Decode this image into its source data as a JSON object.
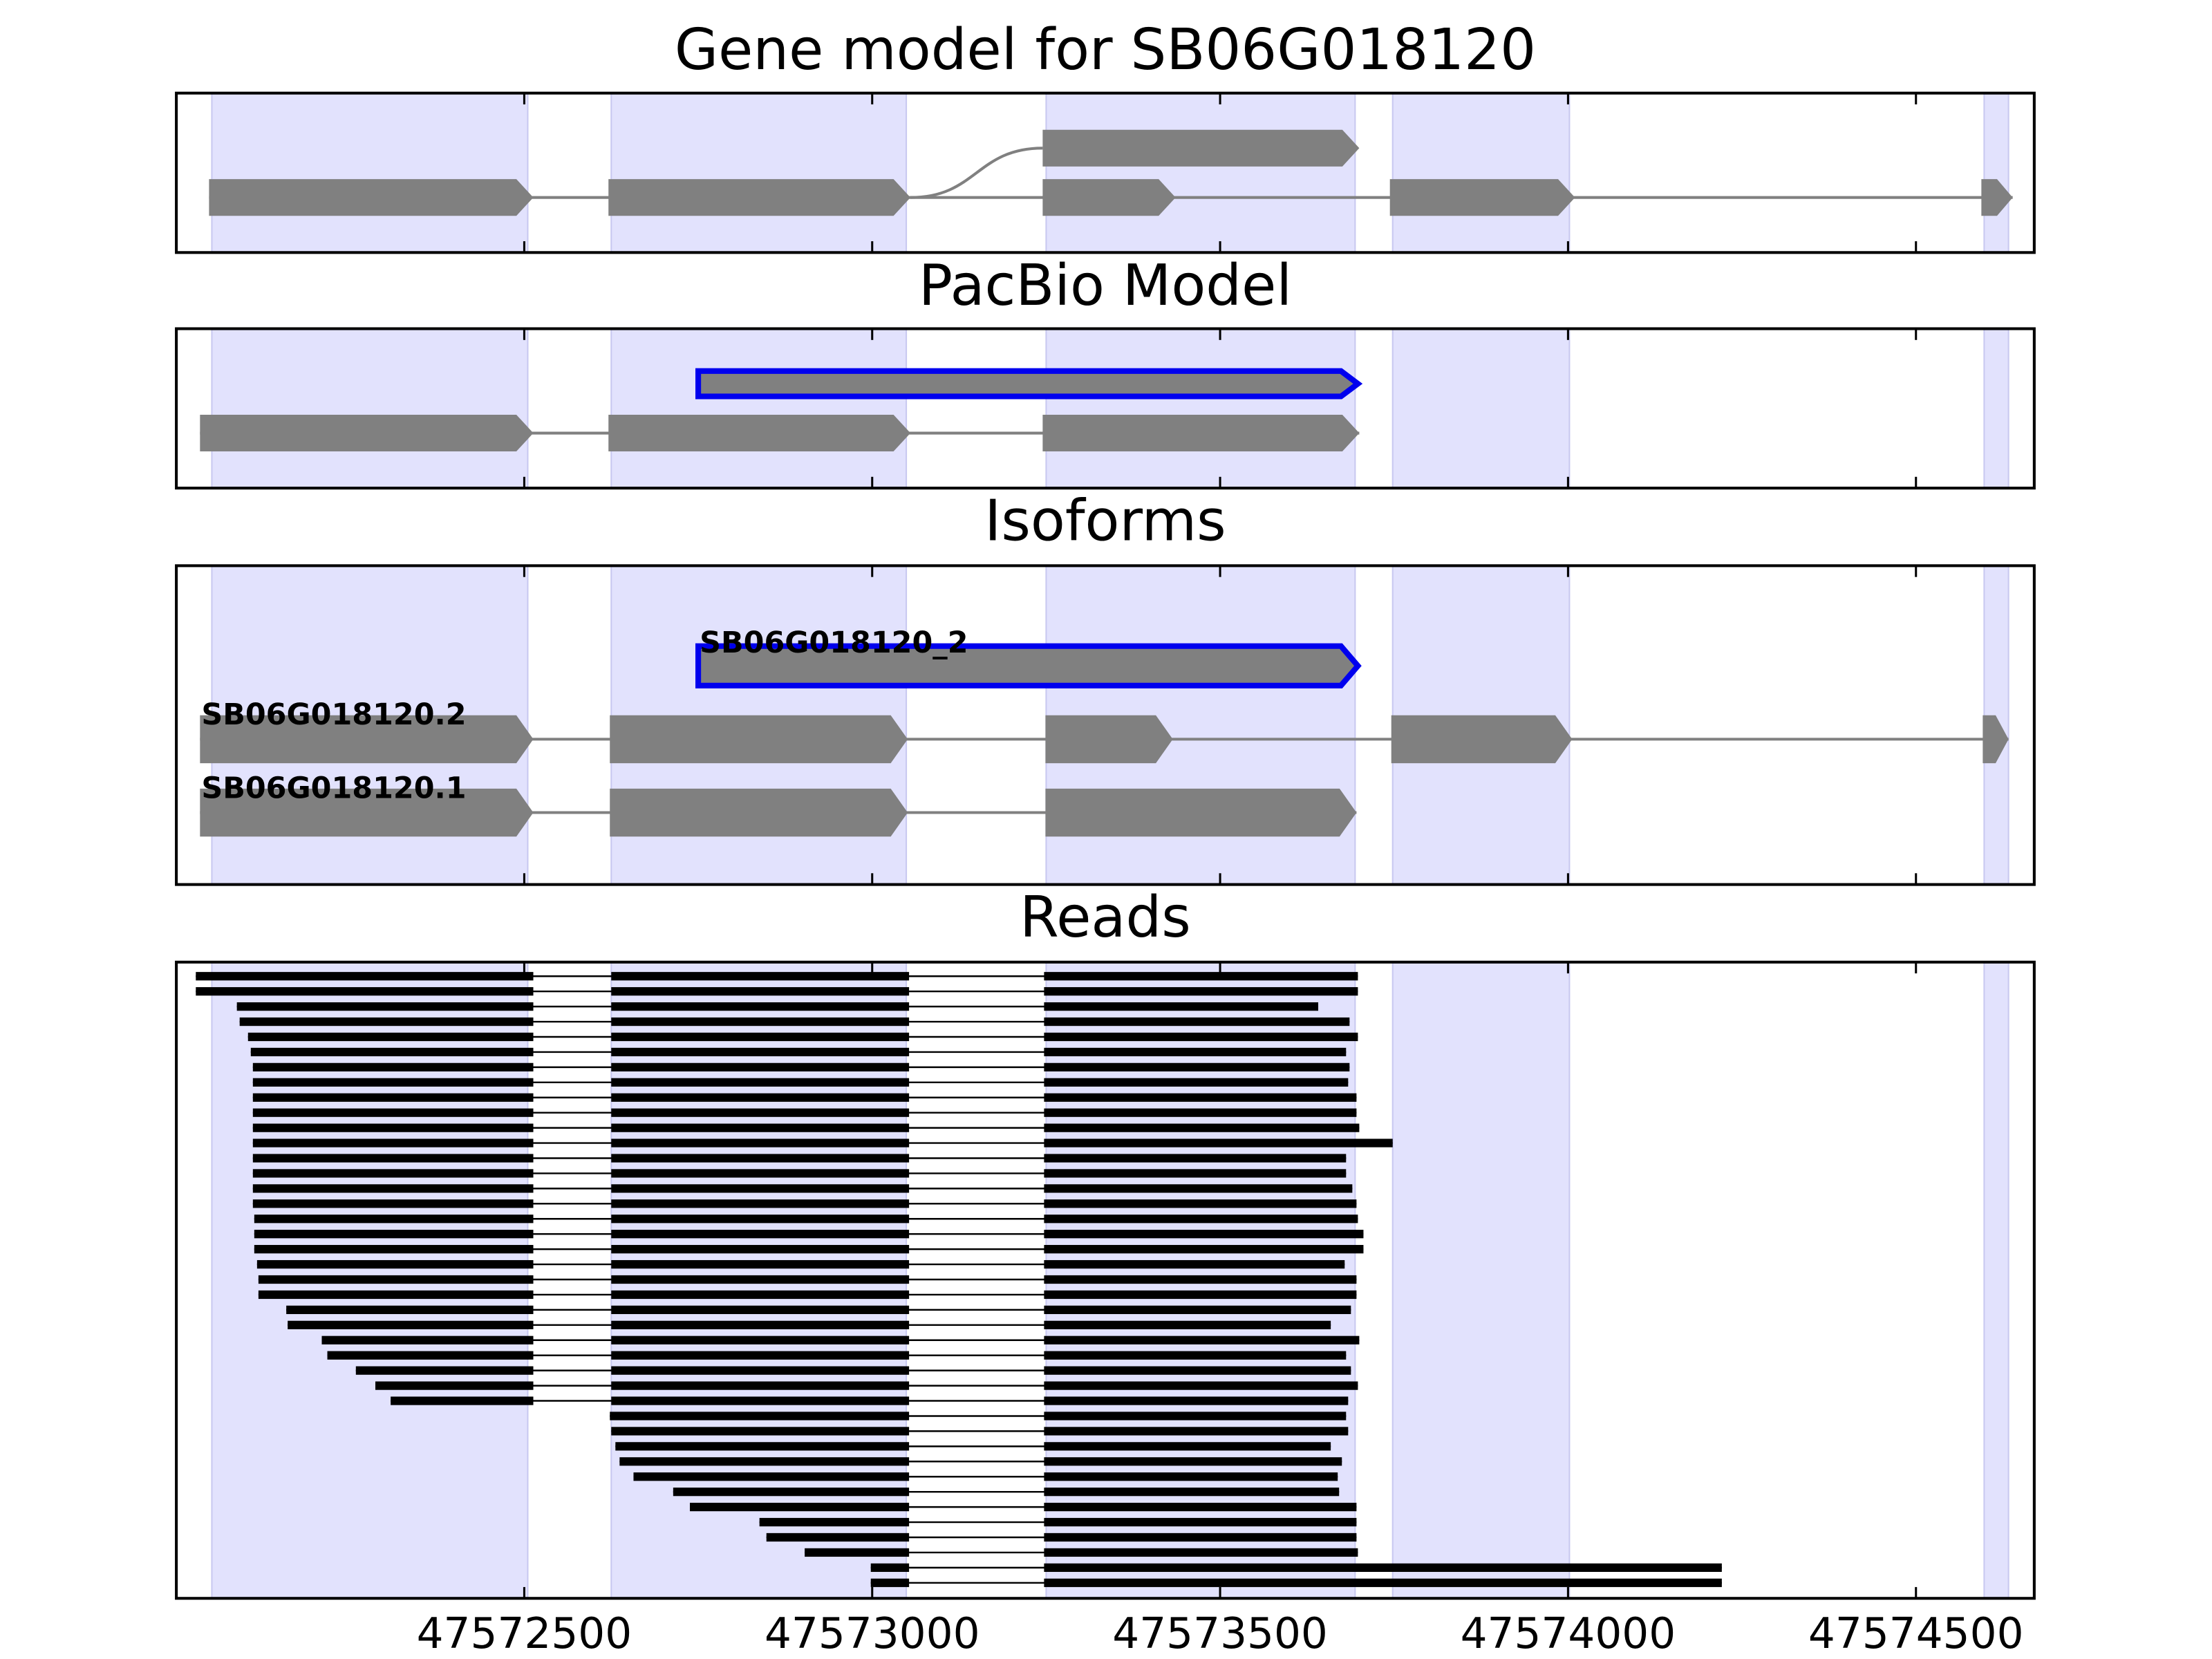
{
  "chart_data": [
    {
      "type": "gene-model",
      "title": "Gene model for SB06G018120",
      "xlim": [
        47572000,
        47574670
      ],
      "xticks": [
        47572500,
        47573000,
        47573500,
        47574000,
        47574500
      ],
      "regions": [
        [
          47572051,
          47572505
        ],
        [
          47572625,
          47573049
        ],
        [
          47573250,
          47573694
        ],
        [
          47573748,
          47574002
        ],
        [
          47574598,
          47574633
        ]
      ],
      "region_color": "#e2e2fd",
      "exon_color": "#808080",
      "rows": [
        {
          "exons": [
            [
              47573245,
              47573700
            ]
          ]
        },
        {
          "exons": [
            [
              47572047,
              47572513
            ],
            [
              47572621,
              47573055
            ],
            [
              47573245,
              47573436
            ],
            [
              47573744,
              47574010
            ],
            [
              47574594,
              47574639
            ]
          ]
        }
      ]
    },
    {
      "type": "gene-model",
      "title": "PacBio Model",
      "xlim": [
        47572000,
        47574670
      ],
      "xticks": [
        47572500,
        47573000,
        47573500,
        47574000,
        47574500
      ],
      "regions": [
        [
          47572051,
          47572505
        ],
        [
          47572625,
          47573049
        ],
        [
          47573250,
          47573694
        ],
        [
          47573748,
          47574002
        ],
        [
          47574598,
          47574633
        ]
      ],
      "region_color": "#e2e2fd",
      "exon_color": "#808080",
      "rows": [
        {
          "exons": [
            [
              47572750,
              47573698
            ]
          ],
          "outline": "#0000ee"
        },
        {
          "exons": [
            [
              47572034,
              47572513
            ],
            [
              47572621,
              47573055
            ],
            [
              47573245,
              47573700
            ]
          ]
        }
      ]
    },
    {
      "type": "gene-model",
      "title": "Isoforms",
      "xlim": [
        47572000,
        47574670
      ],
      "xticks": [
        47572500,
        47573000,
        47573500,
        47574000,
        47574500
      ],
      "regions": [
        [
          47572051,
          47572505
        ],
        [
          47572625,
          47573049
        ],
        [
          47573250,
          47573694
        ],
        [
          47573748,
          47574002
        ],
        [
          47574598,
          47574633
        ]
      ],
      "region_color": "#e2e2fd",
      "exon_color": "#808080",
      "rows": [
        {
          "name": "SB06G018120_2",
          "exons": [
            [
              47572750,
              47573698
            ]
          ],
          "outline": "#0000ee"
        },
        {
          "name": "SB06G018120.2",
          "exons": [
            [
              47572034,
              47572513
            ],
            [
              47572623,
              47573051
            ],
            [
              47573249,
              47573432
            ],
            [
              47573746,
              47574006
            ],
            [
              47574596,
              47574633
            ]
          ]
        },
        {
          "name": "SB06G018120.1",
          "exons": [
            [
              47572034,
              47572513
            ],
            [
              47572623,
              47573051
            ],
            [
              47573249,
              47573696
            ]
          ]
        }
      ]
    },
    {
      "type": "reads",
      "title": "Reads",
      "xlim": [
        47572000,
        47574670
      ],
      "xticks": [
        47572500,
        47573000,
        47573500,
        47574000,
        47574500
      ],
      "regions": [
        [
          47572051,
          47572505
        ],
        [
          47572625,
          47573049
        ],
        [
          47573250,
          47573694
        ],
        [
          47573748,
          47574002
        ],
        [
          47574598,
          47574633
        ]
      ],
      "region_color": "#e2e2fd",
      "read_color": "#000000",
      "reads": [
        [
          [
            47572028,
            47572513
          ],
          [
            47572625,
            47573053
          ],
          [
            47573247,
            47573698
          ]
        ],
        [
          [
            47572028,
            47572513
          ],
          [
            47572625,
            47573053
          ],
          [
            47573247,
            47573698
          ]
        ],
        [
          [
            47572087,
            47572513
          ],
          [
            47572625,
            47573053
          ],
          [
            47573247,
            47573641
          ]
        ],
        [
          [
            47572091,
            47572513
          ],
          [
            47572625,
            47573053
          ],
          [
            47573247,
            47573686
          ]
        ],
        [
          [
            47572103,
            47572513
          ],
          [
            47572625,
            47573053
          ],
          [
            47573247,
            47573698
          ]
        ],
        [
          [
            47572107,
            47572513
          ],
          [
            47572625,
            47573053
          ],
          [
            47573247,
            47573681
          ]
        ],
        [
          [
            47572110,
            47572513
          ],
          [
            47572625,
            47573053
          ],
          [
            47573247,
            47573686
          ]
        ],
        [
          [
            47572110,
            47572513
          ],
          [
            47572625,
            47573053
          ],
          [
            47573247,
            47573684
          ]
        ],
        [
          [
            47572110,
            47572513
          ],
          [
            47572625,
            47573053
          ],
          [
            47573247,
            47573696
          ]
        ],
        [
          [
            47572110,
            47572513
          ],
          [
            47572625,
            47573053
          ],
          [
            47573247,
            47573696
          ]
        ],
        [
          [
            47572110,
            47572513
          ],
          [
            47572625,
            47573053
          ],
          [
            47573247,
            47573700
          ]
        ],
        [
          [
            47572110,
            47572513
          ],
          [
            47572625,
            47573053
          ],
          [
            47573247,
            47573748
          ]
        ],
        [
          [
            47572110,
            47572513
          ],
          [
            47572625,
            47573053
          ],
          [
            47573247,
            47573681
          ]
        ],
        [
          [
            47572110,
            47572513
          ],
          [
            47572625,
            47573053
          ],
          [
            47573247,
            47573681
          ]
        ],
        [
          [
            47572110,
            47572513
          ],
          [
            47572625,
            47573053
          ],
          [
            47573247,
            47573690
          ]
        ],
        [
          [
            47572110,
            47572513
          ],
          [
            47572625,
            47573053
          ],
          [
            47573247,
            47573696
          ]
        ],
        [
          [
            47572112,
            47572513
          ],
          [
            47572625,
            47573053
          ],
          [
            47573247,
            47573698
          ]
        ],
        [
          [
            47572112,
            47572513
          ],
          [
            47572625,
            47573053
          ],
          [
            47573247,
            47573706
          ]
        ],
        [
          [
            47572112,
            47572513
          ],
          [
            47572625,
            47573053
          ],
          [
            47573247,
            47573706
          ]
        ],
        [
          [
            47572116,
            47572513
          ],
          [
            47572625,
            47573053
          ],
          [
            47573247,
            47573679
          ]
        ],
        [
          [
            47572118,
            47572513
          ],
          [
            47572625,
            47573053
          ],
          [
            47573247,
            47573696
          ]
        ],
        [
          [
            47572118,
            47572513
          ],
          [
            47572625,
            47573053
          ],
          [
            47573247,
            47573696
          ]
        ],
        [
          [
            47572158,
            47572513
          ],
          [
            47572625,
            47573053
          ],
          [
            47573247,
            47573688
          ]
        ],
        [
          [
            47572160,
            47572513
          ],
          [
            47572625,
            47573053
          ],
          [
            47573247,
            47573659
          ]
        ],
        [
          [
            47572209,
            47572513
          ],
          [
            47572625,
            47573053
          ],
          [
            47573247,
            47573700
          ]
        ],
        [
          [
            47572217,
            47572513
          ],
          [
            47572625,
            47573053
          ],
          [
            47573247,
            47573681
          ]
        ],
        [
          [
            47572258,
            47572513
          ],
          [
            47572625,
            47573053
          ],
          [
            47573247,
            47573688
          ]
        ],
        [
          [
            47572286,
            47572513
          ],
          [
            47572625,
            47573053
          ],
          [
            47573247,
            47573698
          ]
        ],
        [
          [
            47572308,
            47572513
          ],
          [
            47572625,
            47573053
          ],
          [
            47573247,
            47573684
          ]
        ],
        [
          [
            47572623,
            47573053
          ],
          [
            47573247,
            47573681
          ]
        ],
        [
          [
            47572625,
            47573053
          ],
          [
            47573247,
            47573684
          ]
        ],
        [
          [
            47572631,
            47573053
          ],
          [
            47573247,
            47573659
          ]
        ],
        [
          [
            47572637,
            47573053
          ],
          [
            47573247,
            47573675
          ]
        ],
        [
          [
            47572657,
            47573053
          ],
          [
            47573247,
            47573669
          ]
        ],
        [
          [
            47572714,
            47573053
          ],
          [
            47573247,
            47573671
          ]
        ],
        [
          [
            47572738,
            47573053
          ],
          [
            47573247,
            47573696
          ]
        ],
        [
          [
            47572838,
            47573053
          ],
          [
            47573247,
            47573696
          ]
        ],
        [
          [
            47572848,
            47573053
          ],
          [
            47573247,
            47573696
          ]
        ],
        [
          [
            47572903,
            47573053
          ],
          [
            47573247,
            47573698
          ]
        ],
        [
          [
            47572998,
            47573053
          ],
          [
            47573247,
            47574221
          ]
        ],
        [
          [
            47572998,
            47573053
          ],
          [
            47573247,
            47574221
          ]
        ]
      ]
    }
  ]
}
